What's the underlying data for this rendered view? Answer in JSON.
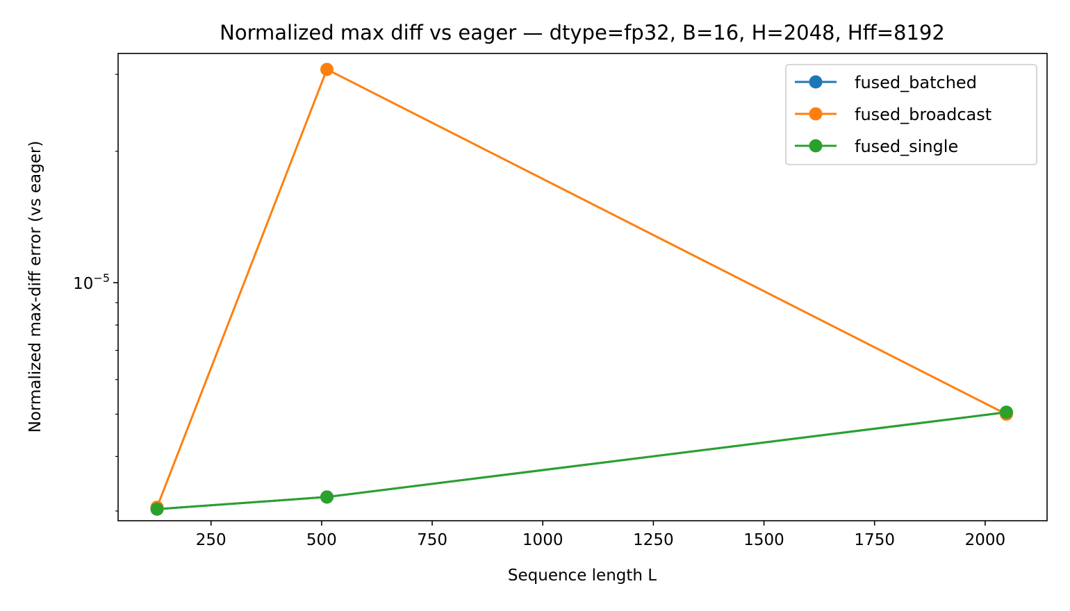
{
  "chart_data": {
    "type": "line",
    "title": "Normalized max diff vs eager — dtype=fp32, B=16, H=2048, Hff=8192",
    "xlabel": "Sequence length L",
    "ylabel": "Normalized max-diff error (vs eager)",
    "xlim": [
      40,
      2140
    ],
    "ylim": [
      2.85e-06,
      3.35e-05
    ],
    "yscale": "log",
    "x_ticks": [
      250,
      500,
      750,
      1000,
      1250,
      1500,
      1750,
      2000
    ],
    "x_tick_labels": [
      "250",
      "500",
      "750",
      "1000",
      "1250",
      "1500",
      "1750",
      "2000"
    ],
    "y_major_ticks": [
      1e-05
    ],
    "y_major_tick_base": "10",
    "y_major_tick_exponent": "−5",
    "y_minor_ticks": [
      3e-06,
      4e-06,
      5e-06,
      6e-06,
      7e-06,
      8e-06,
      9e-06,
      2e-05,
      3e-05
    ],
    "grid": false,
    "legend_position": "top-right",
    "x": [
      128,
      512,
      2048
    ],
    "series": [
      {
        "name": "fused_batched",
        "color": "#1f77b4",
        "values": [
          3.03e-06,
          3.23e-06,
          5.05e-06
        ]
      },
      {
        "name": "fused_broadcast",
        "color": "#ff7f0e",
        "values": [
          3.06e-06,
          3.08e-05,
          5e-06
        ]
      },
      {
        "name": "fused_single",
        "color": "#2ca02c",
        "values": [
          3.03e-06,
          3.23e-06,
          5.05e-06
        ]
      }
    ]
  }
}
